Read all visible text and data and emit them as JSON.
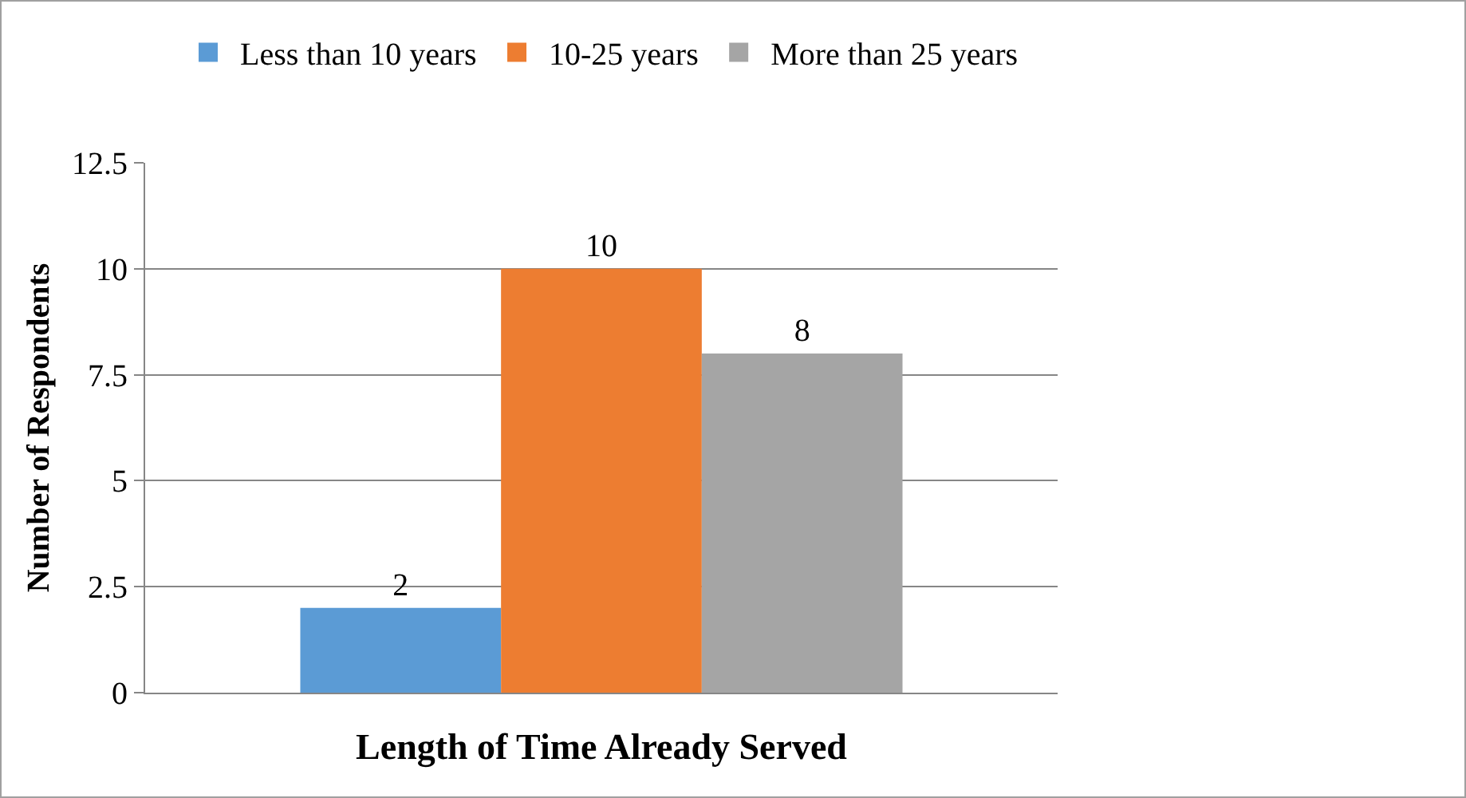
{
  "chart_data": {
    "type": "bar",
    "xlabel": "Length of Time Already Served",
    "ylabel": "Number of Respondents",
    "categories": [
      null
    ],
    "series": [
      {
        "name": "Less than 10 years",
        "color": "#5b9bd5",
        "values": [
          2
        ]
      },
      {
        "name": "10-25 years",
        "color": "#ed7d31",
        "values": [
          10
        ]
      },
      {
        "name": "More than 25 years",
        "color": "#a5a5a5",
        "values": [
          8
        ]
      }
    ],
    "ylim": [
      0,
      12.5
    ],
    "yticks": [
      0,
      2.5,
      5,
      7.5,
      10,
      12.5
    ],
    "grid": "y",
    "legend": "top",
    "data_labels": true
  }
}
